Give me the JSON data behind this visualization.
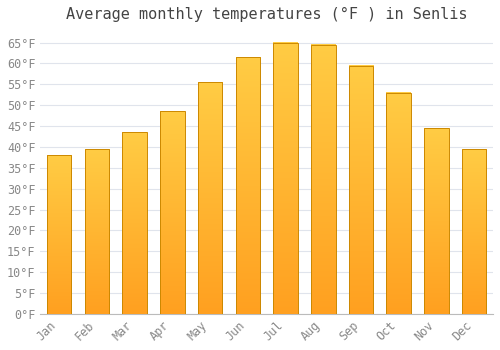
{
  "title": "Average monthly temperatures (°F ) in Senlis",
  "months": [
    "Jan",
    "Feb",
    "Mar",
    "Apr",
    "May",
    "Jun",
    "Jul",
    "Aug",
    "Sep",
    "Oct",
    "Nov",
    "Dec"
  ],
  "values": [
    38,
    39.5,
    43.5,
    48.5,
    55.5,
    61.5,
    65,
    64.5,
    59.5,
    53,
    44.5,
    39.5
  ],
  "bar_color_top": "#FFCC44",
  "bar_color_bottom": "#FFA020",
  "bar_edge_color": "#CC8800",
  "background_color": "#FFFFFF",
  "grid_color": "#E0E4EC",
  "text_color": "#888888",
  "title_color": "#444444",
  "ylim": [
    0,
    68
  ],
  "yticks": [
    0,
    5,
    10,
    15,
    20,
    25,
    30,
    35,
    40,
    45,
    50,
    55,
    60,
    65
  ],
  "ylabel_suffix": "°F",
  "title_fontsize": 11,
  "tick_fontsize": 8.5,
  "bar_width": 0.65
}
